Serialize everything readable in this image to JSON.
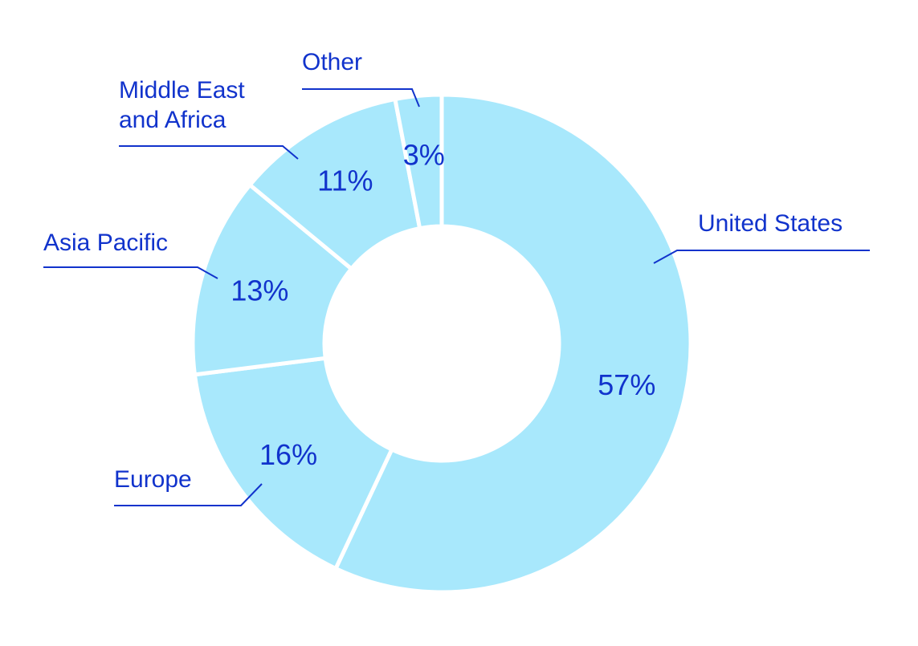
{
  "chart_data": {
    "type": "pie",
    "variant": "donut",
    "colors": {
      "slice": "#a8e8fc",
      "text": "#1133cc",
      "background": "#ffffff"
    },
    "slices": [
      {
        "name": "United States",
        "value": 57,
        "label": "57%"
      },
      {
        "name": "Europe",
        "value": 16,
        "label": "16%"
      },
      {
        "name": "Asia Pacific",
        "value": 13,
        "label": "13%"
      },
      {
        "name": "Middle East and Africa",
        "value": 11,
        "label": "11%"
      },
      {
        "name": "Other",
        "value": 3,
        "label": "3%"
      }
    ],
    "category_labels": {
      "united_states": "United States",
      "europe": "Europe",
      "asia_pacific": "Asia Pacific",
      "mea_line1": "Middle East",
      "mea_line2": "and Africa",
      "other": "Other"
    },
    "legend": "none"
  }
}
